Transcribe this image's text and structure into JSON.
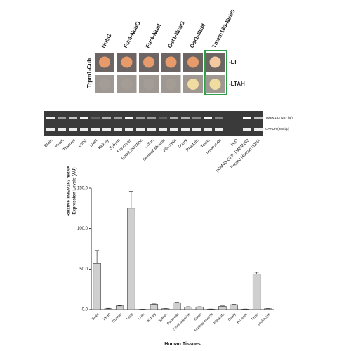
{
  "yeast": {
    "bait": "Trpm1-Cub",
    "columns": [
      "NubG",
      "Fur4-NubG",
      "Fur4-NubI",
      "Ost1-NubG",
      "Ost1-NubI",
      "Tmem163-NubG"
    ],
    "rows": [
      "-LT",
      "-LTAH"
    ]
  },
  "gel": {
    "lanes": [
      "Brain",
      "Heart",
      "Thymus",
      "Lung",
      "Liver",
      "Kidney",
      "Spleen",
      "Pancreas",
      "Small Intestine",
      "Colon",
      "Skeletal Muscle",
      "Placenta",
      "Ovary",
      "Prostate",
      "Testis",
      "Leukocyte",
      "H₂O",
      "pCMV6-GFP-TMEM163",
      "Pooled Human cDNA"
    ],
    "bands": [
      "TMEM163 (287 bp)",
      "GAPDH (980 bp)"
    ]
  },
  "chart_data": {
    "type": "bar",
    "ylabel": [
      "Relative TMEM163 mRNA",
      "Expression Levels (AU)"
    ],
    "xlabel": "Human Tissues",
    "categories": [
      "Brain",
      "Heart",
      "Thymus",
      "Lung",
      "Liver",
      "Kidney",
      "Spleen",
      "Pancreas",
      "Small Intestine",
      "Colon",
      "Skeletal Muscle",
      "Placenta",
      "Ovary",
      "Prostate",
      "Testis",
      "Leukocyte"
    ],
    "values": [
      57,
      1,
      4.5,
      125,
      0.3,
      6.5,
      1,
      8.5,
      3,
      3,
      0.5,
      4,
      6,
      0.5,
      44,
      1
    ],
    "errors": [
      16,
      0.5,
      0.5,
      21,
      0.2,
      0.5,
      0.3,
      0.5,
      0.5,
      0.5,
      0.2,
      0.5,
      0.5,
      0.2,
      2,
      0.3
    ],
    "color": "#cfcfcf",
    "ylim": [
      0,
      150
    ],
    "yticks": [
      {
        "value": 0,
        "label": "0.0"
      },
      {
        "value": 50,
        "label": "50.0"
      },
      {
        "value": 100,
        "label": "100.0"
      },
      {
        "value": 150,
        "label": "150.0"
      }
    ]
  }
}
